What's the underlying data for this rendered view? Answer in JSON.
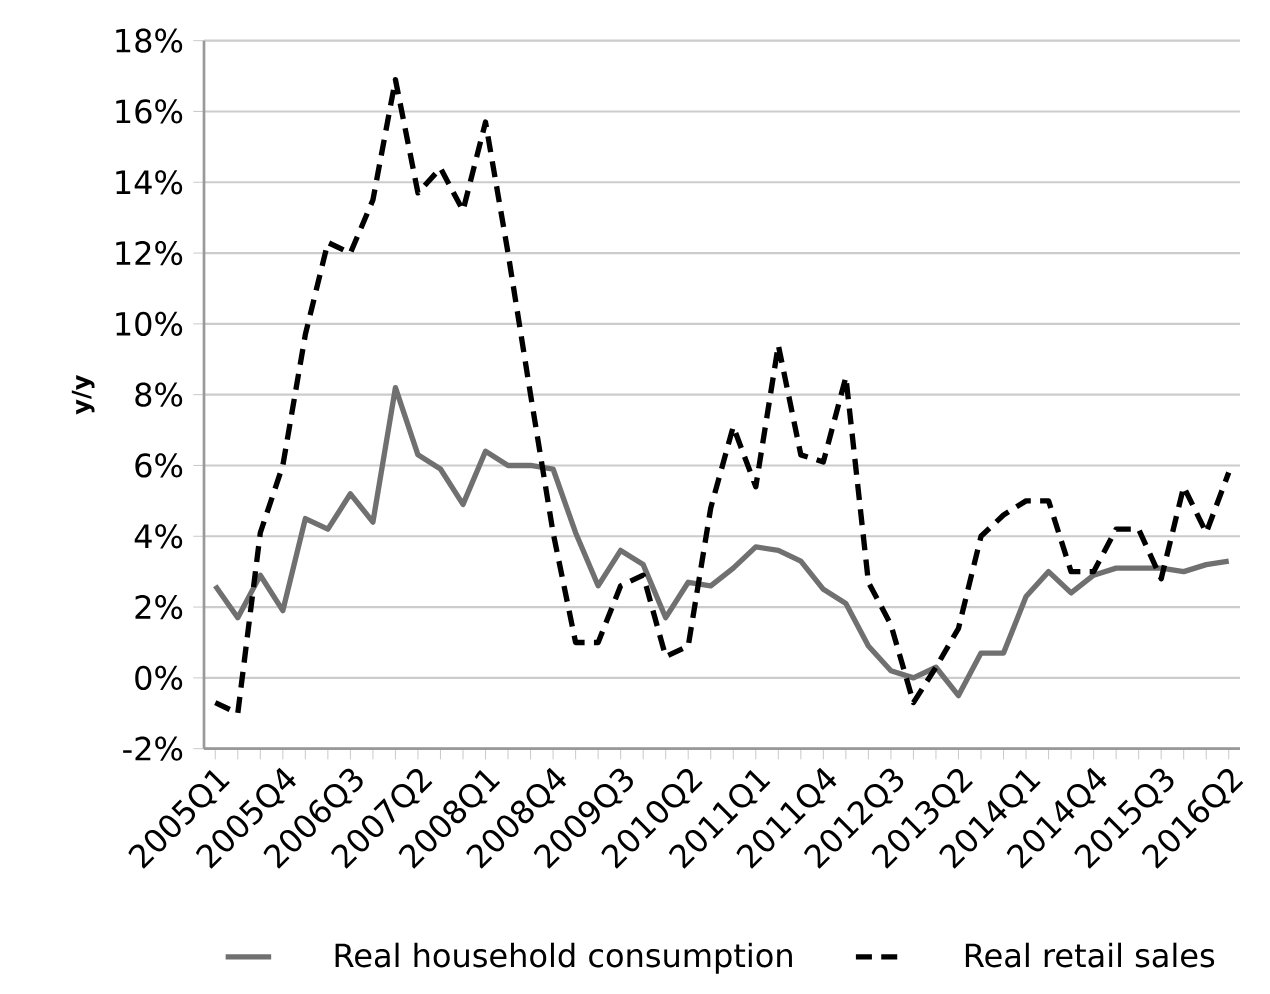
{
  "chart_data": {
    "type": "line",
    "ylabel": "y/y",
    "categories": [
      "2005Q1",
      null,
      null,
      "2005Q4",
      null,
      null,
      "2006Q3",
      null,
      null,
      "2007Q2",
      null,
      null,
      "2008Q1",
      null,
      null,
      "2008Q4",
      null,
      null,
      "2009Q3",
      null,
      null,
      "2010Q2",
      null,
      null,
      "2011Q1",
      null,
      null,
      "2011Q4",
      null,
      null,
      "2012Q3",
      null,
      null,
      "2013Q2",
      null,
      null,
      "2014Q1",
      null,
      null,
      "2014Q4",
      null,
      null,
      "2015Q3",
      null,
      null,
      "2016Q2"
    ],
    "series": [
      {
        "name": "Real household consumption",
        "color": "#707070",
        "line_style": "solid",
        "values": [
          2.6,
          1.7,
          2.9,
          1.9,
          4.5,
          4.2,
          5.2,
          4.4,
          8.2,
          6.3,
          5.9,
          4.9,
          6.4,
          6.0,
          6.0,
          5.9,
          4.1,
          2.6,
          3.6,
          3.2,
          1.7,
          2.7,
          2.6,
          3.1,
          3.7,
          3.6,
          3.3,
          2.5,
          2.1,
          0.9,
          0.2,
          0.0,
          0.3,
          -0.5,
          0.7,
          0.7,
          2.3,
          3.0,
          2.4,
          2.9,
          3.1,
          3.1,
          3.1,
          3.0,
          3.2,
          3.3
        ]
      },
      {
        "name": "Real retail sales",
        "color": "#000000",
        "line_style": "dashed",
        "values": [
          -0.7,
          -1.0,
          4.1,
          6.0,
          9.7,
          12.3,
          12.0,
          13.5,
          16.9,
          13.7,
          14.4,
          13.2,
          15.7,
          12.0,
          8.0,
          4.1,
          1.0,
          1.0,
          2.6,
          2.9,
          0.6,
          0.9,
          4.8,
          7.1,
          5.4,
          9.4,
          6.3,
          6.1,
          8.5,
          2.7,
          1.5,
          -0.7,
          0.3,
          1.4,
          4.0,
          4.6,
          5.0,
          5.0,
          3.0,
          3.0,
          4.2,
          4.2,
          2.8,
          5.4,
          4.1,
          5.8
        ]
      }
    ],
    "ylim": [
      -2,
      18
    ],
    "yticks": [
      {
        "value": -2,
        "label": "-2%"
      },
      {
        "value": 0,
        "label": "0%"
      },
      {
        "value": 2,
        "label": "2%"
      },
      {
        "value": 4,
        "label": "4%"
      },
      {
        "value": 6,
        "label": "6%"
      },
      {
        "value": 8,
        "label": "8%"
      },
      {
        "value": 10,
        "label": "10%"
      },
      {
        "value": 12,
        "label": "12%"
      },
      {
        "value": 14,
        "label": "14%"
      },
      {
        "value": 16,
        "label": "16%"
      },
      {
        "value": 18,
        "label": "18%"
      }
    ],
    "grid": "y",
    "legend": "bottom",
    "marker": "none"
  }
}
